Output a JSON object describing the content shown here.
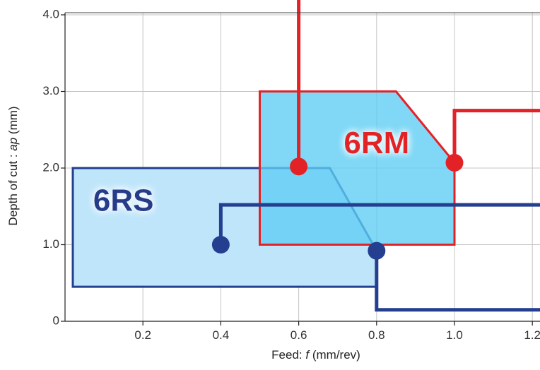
{
  "chart_data": {
    "type": "area",
    "xlabel_prefix": "Feed: ",
    "xlabel_var": "f",
    "xlabel_unit": "  (mm/rev)",
    "ylabel_prefix": "Depth of cut : ",
    "ylabel_var": "ap",
    "ylabel_unit": " (mm)",
    "xlim": [
      0,
      1.2
    ],
    "ylim": [
      0,
      4.0
    ],
    "x_ticks": [
      {
        "value": 0.2,
        "label": "0.2"
      },
      {
        "value": 0.4,
        "label": "0.4"
      },
      {
        "value": 0.6,
        "label": "0.6"
      },
      {
        "value": 0.8,
        "label": "0.8"
      },
      {
        "value": 1.0,
        "label": "1.0"
      },
      {
        "value": 1.2,
        "label": "1.2"
      }
    ],
    "y_ticks": [
      {
        "value": 0,
        "label": "0"
      },
      {
        "value": 1.0,
        "label": "1.0"
      },
      {
        "value": 2.0,
        "label": "2.0"
      },
      {
        "value": 3.0,
        "label": "3.0"
      },
      {
        "value": 4.0,
        "label": "4.0"
      }
    ],
    "grid": true,
    "regions": [
      {
        "name": "6RS",
        "label": "6RS",
        "fill": "#bfe5fa",
        "stroke": "#243f8f",
        "text_color": "#253b8a",
        "polygon": [
          [
            0.02,
            0.45
          ],
          [
            0.02,
            2.0
          ],
          [
            0.68,
            2.0
          ],
          [
            0.8,
            0.92
          ],
          [
            0.8,
            0.45
          ]
        ],
        "label_at": [
          0.15,
          1.55
        ]
      },
      {
        "name": "6RM",
        "label": "6RM",
        "fill": "#5dcdf4",
        "fill_opacity": 0.78,
        "stroke": "#e32227",
        "text_color": "#e32227",
        "polygon": [
          [
            0.5,
            1.0
          ],
          [
            0.5,
            3.0
          ],
          [
            0.85,
            3.0
          ],
          [
            1.0,
            2.07
          ],
          [
            1.0,
            1.0
          ]
        ],
        "label_at": [
          0.8,
          2.3
        ]
      }
    ],
    "callouts": [
      {
        "name": "6RM-callout-a",
        "color": "#e32227",
        "dot": [
          0.6,
          2.02
        ],
        "path": [
          [
            0.6,
            2.02
          ],
          [
            0.6,
            4.6
          ]
        ]
      },
      {
        "name": "6RM-callout-b",
        "color": "#e32227",
        "dot": [
          1.0,
          2.07
        ],
        "path": [
          [
            1.0,
            2.07
          ],
          [
            1.0,
            2.75
          ],
          [
            1.3,
            2.75
          ]
        ]
      },
      {
        "name": "6RS-callout-a",
        "color": "#243f8f",
        "dot": [
          0.4,
          1.0
        ],
        "path": [
          [
            0.4,
            1.0
          ],
          [
            0.4,
            1.52
          ],
          [
            1.3,
            1.52
          ]
        ]
      },
      {
        "name": "6RS-callout-b",
        "color": "#243f8f",
        "dot": [
          0.8,
          0.92
        ],
        "path": [
          [
            0.8,
            0.92
          ],
          [
            0.8,
            0.15
          ],
          [
            1.3,
            0.15
          ]
        ]
      }
    ]
  }
}
